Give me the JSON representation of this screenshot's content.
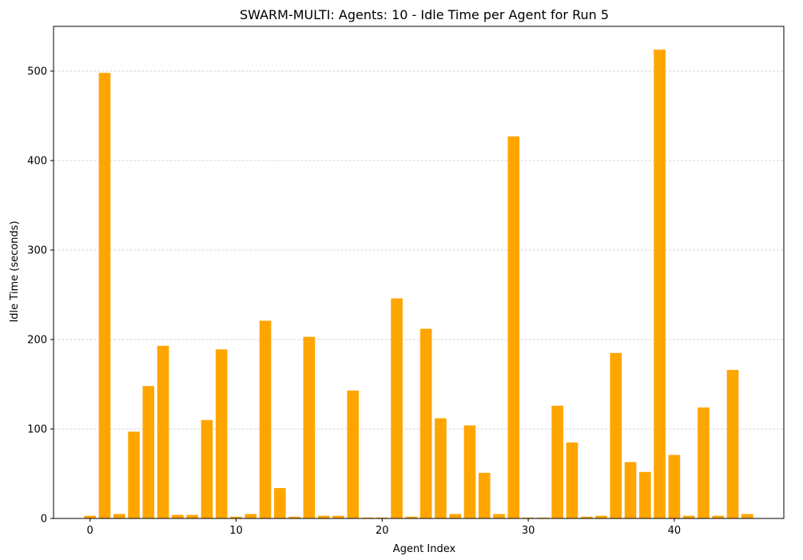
{
  "chart_data": {
    "type": "bar",
    "title": "SWARM-MULTI: Agents: 10 - Idle Time per Agent for Run 5",
    "xlabel": "Agent Index",
    "ylabel": "Idle Time (seconds)",
    "xlim": [
      -2.5,
      47.5
    ],
    "ylim": [
      0,
      550
    ],
    "xticks": [
      0,
      10,
      20,
      30,
      40
    ],
    "yticks": [
      0,
      100,
      200,
      300,
      400,
      500
    ],
    "grid": "y-dashed",
    "bar_color": "#FFA500",
    "x": [
      0,
      1,
      2,
      3,
      4,
      5,
      6,
      7,
      8,
      9,
      10,
      11,
      12,
      13,
      14,
      15,
      16,
      17,
      18,
      19,
      20,
      21,
      22,
      23,
      24,
      25,
      26,
      27,
      28,
      29,
      30,
      31,
      32,
      33,
      34,
      35,
      36,
      37,
      38,
      39,
      40,
      41,
      42,
      43,
      44,
      45
    ],
    "values": [
      3,
      498,
      5,
      97,
      148,
      193,
      4,
      4,
      110,
      189,
      2,
      5,
      221,
      34,
      2,
      203,
      3,
      3,
      143,
      1,
      1,
      246,
      2,
      212,
      112,
      5,
      104,
      51,
      5,
      427,
      1,
      1,
      126,
      85,
      2,
      3,
      185,
      63,
      52,
      524,
      71,
      3,
      124,
      3,
      166,
      5
    ]
  }
}
